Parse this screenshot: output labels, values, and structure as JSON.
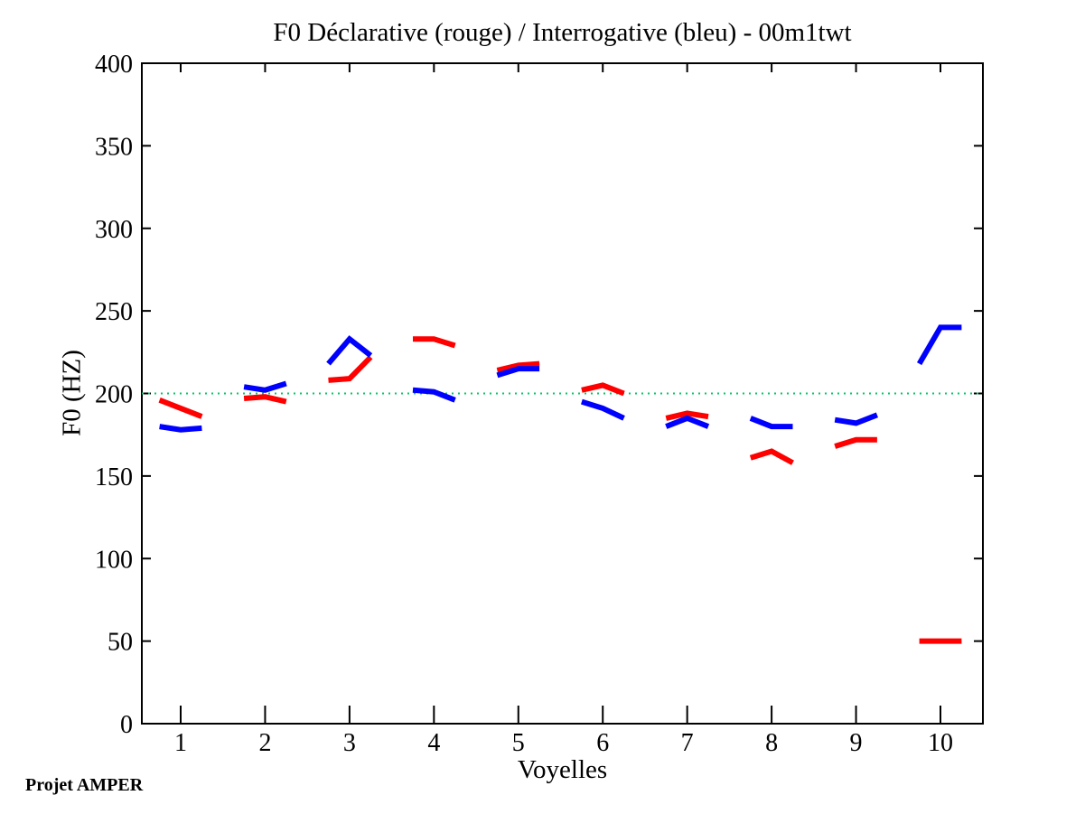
{
  "page": {
    "background": "#ffffff",
    "footer": "Projet AMPER"
  },
  "chart_data": {
    "type": "line",
    "title": "F0 Déclarative (rouge) / Interrogative (bleu) - 00m1twt",
    "xlabel": "Voyelles",
    "ylabel": "F0 (HZ)",
    "xlim": [
      0.54,
      10.5
    ],
    "ylim": [
      0,
      400
    ],
    "xticks": [
      1,
      2,
      3,
      4,
      5,
      6,
      7,
      8,
      9,
      10
    ],
    "yticks": [
      0,
      50,
      100,
      150,
      200,
      250,
      300,
      350,
      400
    ],
    "grid": false,
    "legend": "encoded in title (rouge = red declarative, bleu = blue interrogative)",
    "reference_line": {
      "y": 200,
      "color": "#00c864",
      "style": "dotted"
    },
    "point_offsets": [
      -0.25,
      0,
      0.25
    ],
    "series": [
      {
        "name": "Déclarative (rouge)",
        "color": "#ff0000",
        "segments_by_vowel": [
          [
            196,
            191,
            186
          ],
          [
            197,
            198,
            195
          ],
          [
            208,
            209,
            222
          ],
          [
            233,
            233,
            229
          ],
          [
            214,
            217,
            218
          ],
          [
            202,
            205,
            200
          ],
          [
            185,
            188,
            186
          ],
          [
            161,
            165,
            158
          ],
          [
            168,
            172,
            172
          ],
          [
            50,
            50,
            50
          ]
        ]
      },
      {
        "name": "Interrogative (bleu)",
        "color": "#0000ff",
        "segments_by_vowel": [
          [
            180,
            178,
            179
          ],
          [
            204,
            202,
            206
          ],
          [
            218,
            233,
            223
          ],
          [
            202,
            201,
            196
          ],
          [
            211,
            215,
            215
          ],
          [
            195,
            191,
            185
          ],
          [
            180,
            185,
            180
          ],
          [
            185,
            180,
            180
          ],
          [
            184,
            182,
            187
          ],
          [
            218,
            240,
            240
          ]
        ]
      }
    ]
  }
}
